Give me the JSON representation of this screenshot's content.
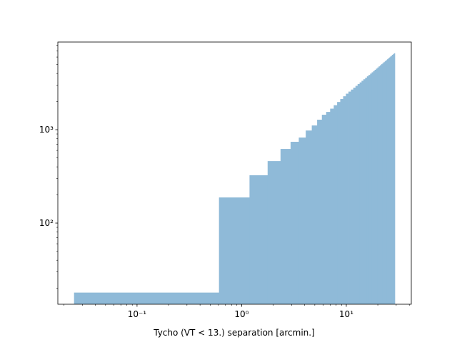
{
  "chart_data": {
    "type": "histogram",
    "xlabel": "Tycho (VT < 13.) separation [arcmin.]",
    "xscale": "log",
    "yscale": "log",
    "color": "#8fbad8",
    "bins": [
      0.025,
      0.607,
      1.188,
      1.77,
      2.351,
      2.933,
      3.514,
      4.096,
      4.677,
      5.259,
      5.84,
      6.422,
      7.003,
      7.585,
      8.166,
      8.748,
      9.329,
      9.911,
      10.492,
      11.074,
      11.655,
      12.237,
      12.818,
      13.4,
      13.981,
      14.563,
      15.144,
      15.726,
      16.307,
      16.889,
      17.47,
      18.052,
      18.633,
      19.215,
      19.796,
      20.378,
      20.959,
      21.541,
      22.122,
      22.704,
      23.285,
      23.867,
      24.448,
      25.03,
      25.611,
      26.193,
      26.774,
      27.356,
      27.937,
      28.519,
      29.1
    ],
    "values": [
      18,
      188,
      325,
      461,
      622,
      742,
      824,
      980,
      1110,
      1280,
      1446,
      1550,
      1680,
      1830,
      1980,
      2130,
      2280,
      2430,
      2560,
      2690,
      2820,
      2950,
      3080,
      3210,
      3340,
      3470,
      3600,
      3730,
      3860,
      3990,
      4120,
      4250,
      4380,
      4510,
      4640,
      4770,
      4900,
      5030,
      5160,
      5290,
      5420,
      5550,
      5680,
      5810,
      5940,
      6070,
      6200,
      6330,
      6460,
      6590
    ],
    "xlim": [
      0.0175,
      41.8
    ],
    "ylim": [
      13.5,
      8690
    ],
    "xticks": [
      {
        "value": 0.1,
        "label": "10⁻¹"
      },
      {
        "value": 1,
        "label": "10⁰"
      },
      {
        "value": 10,
        "label": "10¹"
      }
    ],
    "yticks": [
      {
        "value": 100,
        "label": "10²"
      },
      {
        "value": 1000,
        "label": "10³"
      }
    ]
  }
}
